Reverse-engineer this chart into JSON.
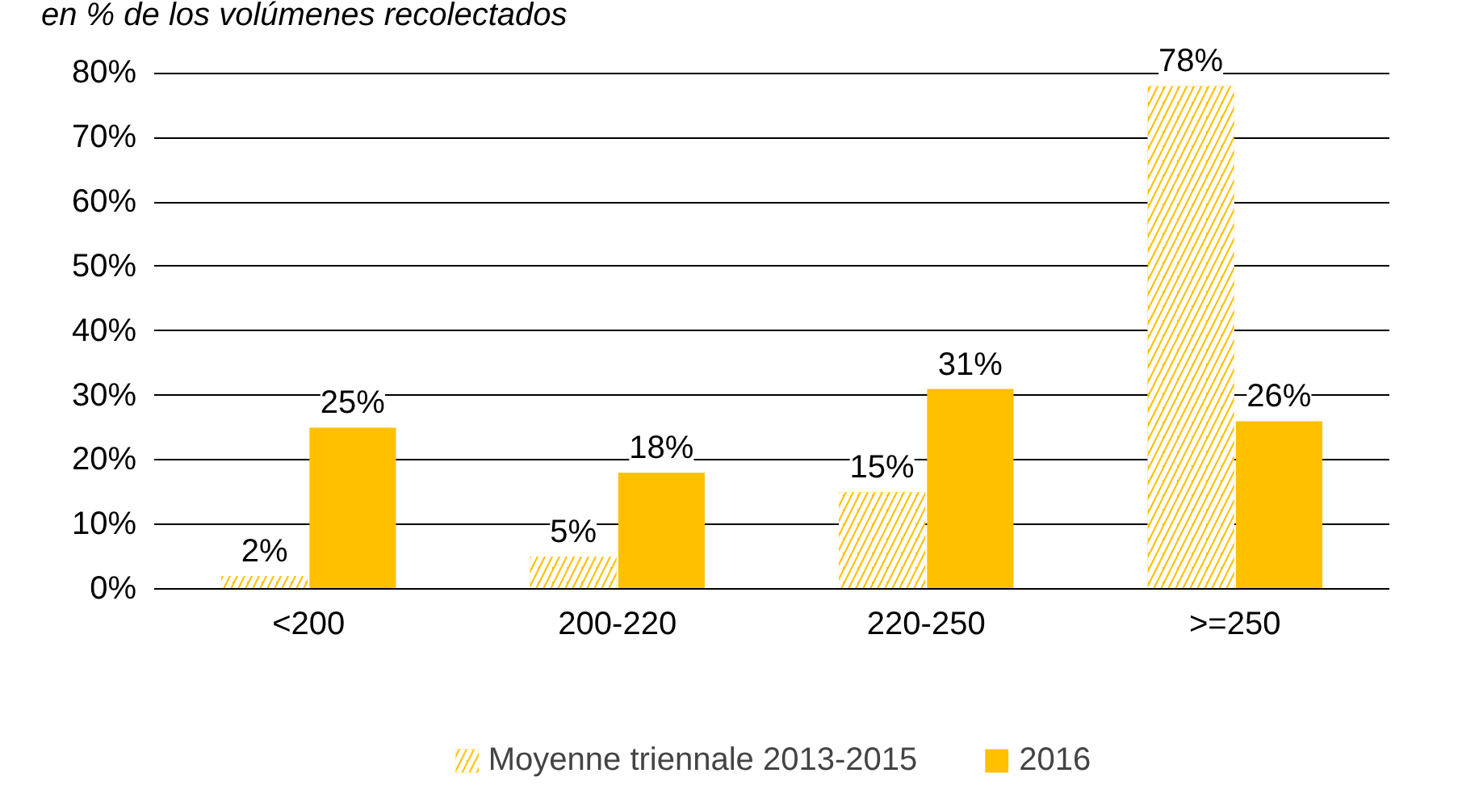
{
  "chart_data": {
    "type": "bar",
    "title": "en % de los volúmenes recolectados",
    "categories": [
      "<200",
      "200-220",
      "220-250",
      ">=250"
    ],
    "series": [
      {
        "name": "Moyenne triennale 2013-2015",
        "color": "#ffc000",
        "values": [
          2,
          5,
          15,
          78
        ],
        "value_labels": [
          "2%",
          "5%",
          "15%",
          "78%"
        ]
      },
      {
        "name": "2016",
        "color": "#ffc000",
        "values": [
          25,
          18,
          31,
          26
        ],
        "value_labels": [
          "25%",
          "18%",
          "31%",
          "26%"
        ]
      }
    ],
    "ylim": [
      0,
      80
    ],
    "yticks": [
      {
        "value": 0,
        "label": "0%"
      },
      {
        "value": 10,
        "label": "10%"
      },
      {
        "value": 20,
        "label": "20%"
      },
      {
        "value": 30,
        "label": "30%"
      },
      {
        "value": 40,
        "label": "40%"
      },
      {
        "value": 50,
        "label": "50%"
      },
      {
        "value": 60,
        "label": "60%"
      },
      {
        "value": 70,
        "label": "70%"
      },
      {
        "value": 80,
        "label": "80%"
      }
    ],
    "grid": "y",
    "legend": "bottom"
  }
}
